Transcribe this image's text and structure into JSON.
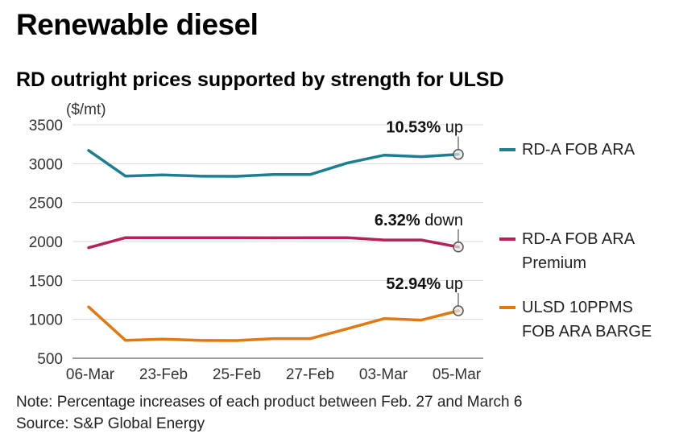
{
  "page": {
    "title": "Renewable diesel",
    "subtitle": "RD outright prices supported by strength for ULSD",
    "note": "Note: Percentage increases of each product between Feb. 27 and March 6",
    "source": "Source: S&P Global Energy"
  },
  "chart_data": {
    "type": "line",
    "title": "RD outright prices supported by strength for ULSD",
    "ylabel": "($/mt)",
    "xlabel": "",
    "ylim": [
      500,
      3500
    ],
    "yticks": [
      3500,
      3000,
      2500,
      2000,
      1500,
      1000,
      500
    ],
    "x_tick_labels": [
      "06-Mar",
      "23-Feb",
      "25-Feb",
      "27-Feb",
      "03-Mar",
      "05-Mar"
    ],
    "grid": true,
    "legend_position": "right",
    "series": [
      {
        "name": "RD-A FOB ARA",
        "legend_lines": [
          "RD-A FOB ARA"
        ],
        "color": "#1a7f8e",
        "values": [
          3170,
          2840,
          2855,
          2840,
          2838,
          2862,
          2862,
          3010,
          3110,
          3090,
          3120
        ],
        "annotation": {
          "value": "10.53%",
          "direction": "up"
        }
      },
      {
        "name": "RD-A FOB ARA Premium",
        "legend_lines": [
          "RD-A FOB ARA",
          "Premium"
        ],
        "color": "#b5225a",
        "values": [
          1920,
          2050,
          2050,
          2050,
          2050,
          2048,
          2050,
          2050,
          2020,
          2020,
          1930
        ],
        "annotation": {
          "value": "6.32%",
          "direction": "down"
        }
      },
      {
        "name": "ULSD 10PPMS FOB ARA BARGE",
        "legend_lines": [
          "ULSD 10PPMS",
          "FOB ARA BARGE"
        ],
        "color": "#e07a10",
        "values": [
          1160,
          730,
          745,
          730,
          728,
          752,
          752,
          880,
          1010,
          990,
          1110
        ],
        "annotation": {
          "value": "52.94%",
          "direction": "up"
        }
      }
    ]
  }
}
